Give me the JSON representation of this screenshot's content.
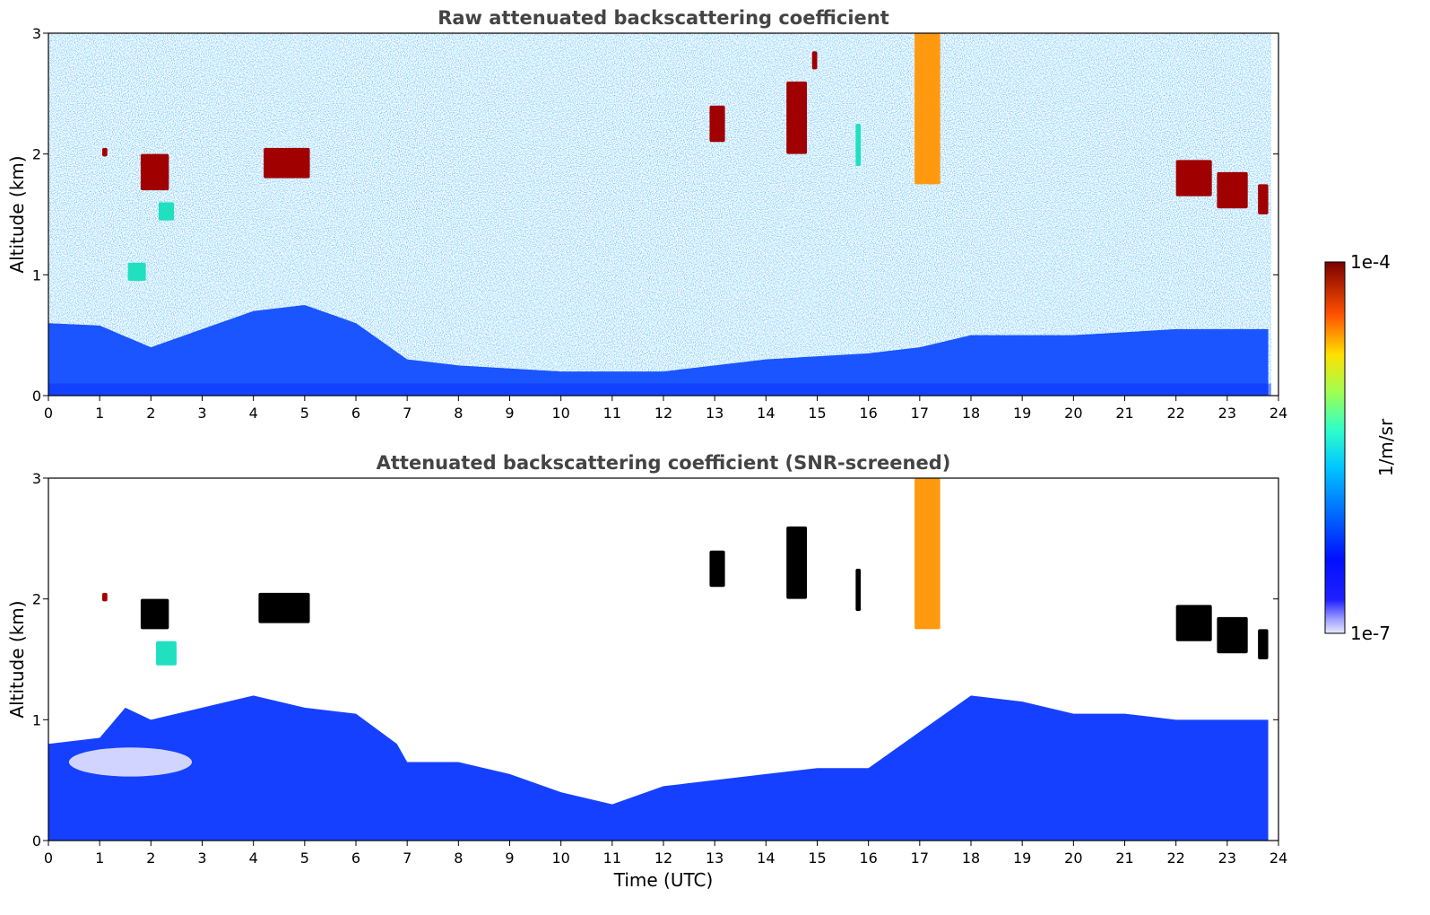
{
  "chart_data": [
    {
      "type": "heatmap",
      "title": "Raw attenuated backscattering coefficient",
      "xlabel": "",
      "ylabel": "Altitude (km)",
      "xlim": [
        0,
        24
      ],
      "ylim": [
        0,
        3
      ],
      "x_ticks": [
        "0",
        "1",
        "2",
        "3",
        "4",
        "5",
        "6",
        "7",
        "8",
        "9",
        "10",
        "11",
        "12",
        "13",
        "14",
        "15",
        "16",
        "17",
        "18",
        "19",
        "20",
        "21",
        "22",
        "23",
        "24"
      ],
      "y_ticks": [
        "0",
        "1",
        "2",
        "3"
      ],
      "boundary_layer_top_km": [
        [
          0,
          0.6
        ],
        [
          1,
          0.58
        ],
        [
          2,
          0.4
        ],
        [
          3,
          0.55
        ],
        [
          4,
          0.7
        ],
        [
          5,
          0.75
        ],
        [
          6,
          0.6
        ],
        [
          7,
          0.3
        ],
        [
          8,
          0.25
        ],
        [
          10,
          0.2
        ],
        [
          12,
          0.2
        ],
        [
          14,
          0.3
        ],
        [
          16,
          0.35
        ],
        [
          17,
          0.4
        ],
        [
          18,
          0.5
        ],
        [
          20,
          0.5
        ],
        [
          22,
          0.55
        ],
        [
          23.8,
          0.55
        ]
      ],
      "clouds": [
        {
          "x": [
            1.05,
            1.15
          ],
          "y": [
            1.98,
            2.05
          ],
          "level": "high"
        },
        {
          "x": [
            1.8,
            2.35
          ],
          "y": [
            1.7,
            2.0
          ],
          "level": "high"
        },
        {
          "x": [
            2.15,
            2.45
          ],
          "y": [
            1.45,
            1.6
          ],
          "level": "medium"
        },
        {
          "x": [
            4.2,
            5.1
          ],
          "y": [
            1.8,
            2.05
          ],
          "level": "high"
        },
        {
          "x": [
            1.55,
            1.9
          ],
          "y": [
            0.95,
            1.1
          ],
          "level": "medium"
        },
        {
          "x": [
            12.9,
            13.2
          ],
          "y": [
            2.1,
            2.4
          ],
          "level": "high"
        },
        {
          "x": [
            14.4,
            14.8
          ],
          "y": [
            2.0,
            2.6
          ],
          "level": "high"
        },
        {
          "x": [
            14.9,
            15.0
          ],
          "y": [
            2.7,
            2.85
          ],
          "level": "high"
        },
        {
          "x": [
            15.75,
            15.85
          ],
          "y": [
            1.9,
            2.25
          ],
          "level": "medium"
        },
        {
          "x": [
            16.9,
            17.4
          ],
          "y": [
            1.75,
            3.0
          ],
          "level": "fallstreak"
        },
        {
          "x": [
            22.0,
            22.7
          ],
          "y": [
            1.65,
            1.95
          ],
          "level": "high"
        },
        {
          "x": [
            22.8,
            23.4
          ],
          "y": [
            1.55,
            1.85
          ],
          "level": "high"
        },
        {
          "x": [
            23.6,
            23.8
          ],
          "y": [
            1.5,
            1.75
          ],
          "level": "high"
        }
      ]
    },
    {
      "type": "heatmap",
      "title": "Attenuated backscattering coefficient (SNR-screened)",
      "xlabel": "Time (UTC)",
      "ylabel": "Altitude (km)",
      "xlim": [
        0,
        24
      ],
      "ylim": [
        0,
        3
      ],
      "x_ticks": [
        "0",
        "1",
        "2",
        "3",
        "4",
        "5",
        "6",
        "7",
        "8",
        "9",
        "10",
        "11",
        "12",
        "13",
        "14",
        "15",
        "16",
        "17",
        "18",
        "19",
        "20",
        "21",
        "22",
        "23",
        "24"
      ],
      "y_ticks": [
        "0",
        "1",
        "2",
        "3"
      ],
      "screened_layer_top_km": [
        [
          0,
          0.8
        ],
        [
          1,
          0.85
        ],
        [
          1.5,
          1.1
        ],
        [
          2,
          1.0
        ],
        [
          3,
          1.1
        ],
        [
          4,
          1.2
        ],
        [
          5,
          1.1
        ],
        [
          6,
          1.05
        ],
        [
          6.8,
          0.8
        ],
        [
          7,
          0.65
        ],
        [
          8,
          0.65
        ],
        [
          9,
          0.55
        ],
        [
          10,
          0.4
        ],
        [
          11,
          0.3
        ],
        [
          12,
          0.45
        ],
        [
          13,
          0.5
        ],
        [
          14,
          0.55
        ],
        [
          15,
          0.6
        ],
        [
          16,
          0.6
        ],
        [
          17,
          0.9
        ],
        [
          18,
          1.2
        ],
        [
          19,
          1.15
        ],
        [
          20,
          1.05
        ],
        [
          21,
          1.05
        ],
        [
          22,
          1.0
        ],
        [
          23,
          1.0
        ],
        [
          23.8,
          1.0
        ]
      ],
      "clouds": [
        {
          "x": [
            1.05,
            1.15
          ],
          "y": [
            1.98,
            2.05
          ],
          "level": "high"
        },
        {
          "x": [
            1.8,
            2.35
          ],
          "y": [
            1.75,
            2.0
          ],
          "level": "saturated"
        },
        {
          "x": [
            2.1,
            2.5
          ],
          "y": [
            1.45,
            1.65
          ],
          "level": "medium"
        },
        {
          "x": [
            4.1,
            5.1
          ],
          "y": [
            1.8,
            2.05
          ],
          "level": "saturated"
        },
        {
          "x": [
            12.9,
            13.2
          ],
          "y": [
            2.1,
            2.4
          ],
          "level": "saturated"
        },
        {
          "x": [
            14.4,
            14.8
          ],
          "y": [
            2.0,
            2.6
          ],
          "level": "saturated"
        },
        {
          "x": [
            15.75,
            15.85
          ],
          "y": [
            1.9,
            2.25
          ],
          "level": "saturated"
        },
        {
          "x": [
            16.9,
            17.4
          ],
          "y": [
            1.75,
            3.0
          ],
          "level": "fallstreak"
        },
        {
          "x": [
            22.0,
            22.7
          ],
          "y": [
            1.65,
            1.95
          ],
          "level": "saturated"
        },
        {
          "x": [
            22.8,
            23.4
          ],
          "y": [
            1.55,
            1.85
          ],
          "level": "saturated"
        },
        {
          "x": [
            23.6,
            23.8
          ],
          "y": [
            1.5,
            1.75
          ],
          "level": "saturated"
        }
      ]
    }
  ],
  "colorbar": {
    "label": "1/m/sr",
    "max_label": "1e-4",
    "min_label": "1e-7",
    "scale": "log",
    "colormap": "jet",
    "range": [
      1e-07,
      0.0001
    ]
  }
}
